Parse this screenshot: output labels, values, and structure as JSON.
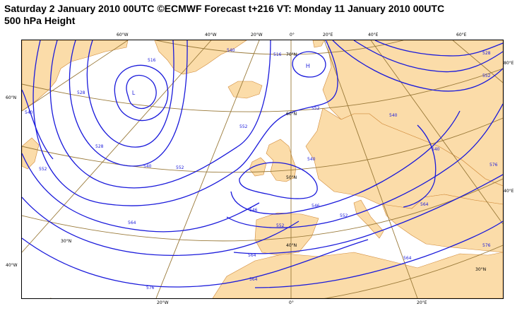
{
  "header": {
    "line1": "Saturday 2 January 2010 00UTC ©ECMWF Forecast t+216 VT: Monday 11 January 2010 00UTC",
    "line2": "500 hPa Height"
  },
  "map": {
    "colors": {
      "land": "#fbdca9",
      "coast": "#d08a3a",
      "contour": "#1a1adb",
      "grid": "#9a7a3a"
    },
    "top_labels": [
      "60°W",
      "40°W",
      "20°W",
      "0°",
      "20°E",
      "40°E",
      "60°E"
    ],
    "bottom_labels": [
      "20°W",
      "0°",
      "20°E"
    ],
    "left_labels": [
      "60°N",
      "40°W"
    ],
    "right_labels": [
      "80°E",
      "40°E"
    ],
    "interior_labels": [
      "70°N",
      "60°N",
      "50°N",
      "40°N",
      "30°N",
      "30°N"
    ],
    "contour_labels": [
      "516",
      "528",
      "528",
      "540",
      "540",
      "540",
      "552",
      "552",
      "552",
      "564",
      "564",
      "576",
      "576",
      "516",
      "540",
      "552",
      "552",
      "564",
      "552",
      "540",
      "546",
      "546",
      "552",
      "564",
      "576",
      "528",
      "540",
      "564"
    ],
    "pressure_centres": [
      "L",
      "H"
    ]
  }
}
